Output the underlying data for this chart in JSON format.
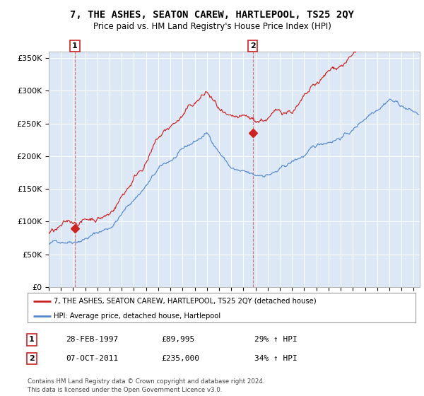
{
  "title": "7, THE ASHES, SEATON CAREW, HARTLEPOOL, TS25 2QY",
  "subtitle": "Price paid vs. HM Land Registry's House Price Index (HPI)",
  "plot_bg_color": "#dce8f5",
  "ylim": [
    0,
    360000
  ],
  "yticks": [
    0,
    50000,
    100000,
    150000,
    200000,
    250000,
    300000,
    350000
  ],
  "ytick_labels": [
    "£0",
    "£50K",
    "£100K",
    "£150K",
    "£200K",
    "£250K",
    "£300K",
    "£350K"
  ],
  "xmin_year": 1995.0,
  "xmax_year": 2025.5,
  "xtick_years": [
    1995,
    1996,
    1997,
    1998,
    1999,
    2000,
    2001,
    2002,
    2003,
    2004,
    2005,
    2006,
    2007,
    2008,
    2009,
    2010,
    2011,
    2012,
    2013,
    2014,
    2015,
    2016,
    2017,
    2018,
    2019,
    2020,
    2021,
    2022,
    2023,
    2024,
    2025
  ],
  "sale1_x": 1997.15,
  "sale1_y": 89995,
  "sale1_label": "1",
  "sale2_x": 2011.77,
  "sale2_y": 235000,
  "sale2_label": "2",
  "legend_line1": "7, THE ASHES, SEATON CAREW, HARTLEPOOL, TS25 2QY (detached house)",
  "legend_line2": "HPI: Average price, detached house, Hartlepool",
  "footer1": "Contains HM Land Registry data © Crown copyright and database right 2024.",
  "footer2": "This data is licensed under the Open Government Licence v3.0.",
  "table_row1": [
    "1",
    "28-FEB-1997",
    "£89,995",
    "29% ↑ HPI"
  ],
  "table_row2": [
    "2",
    "07-OCT-2011",
    "£235,000",
    "34% ↑ HPI"
  ],
  "red_color": "#cc2222",
  "blue_color": "#5588cc"
}
